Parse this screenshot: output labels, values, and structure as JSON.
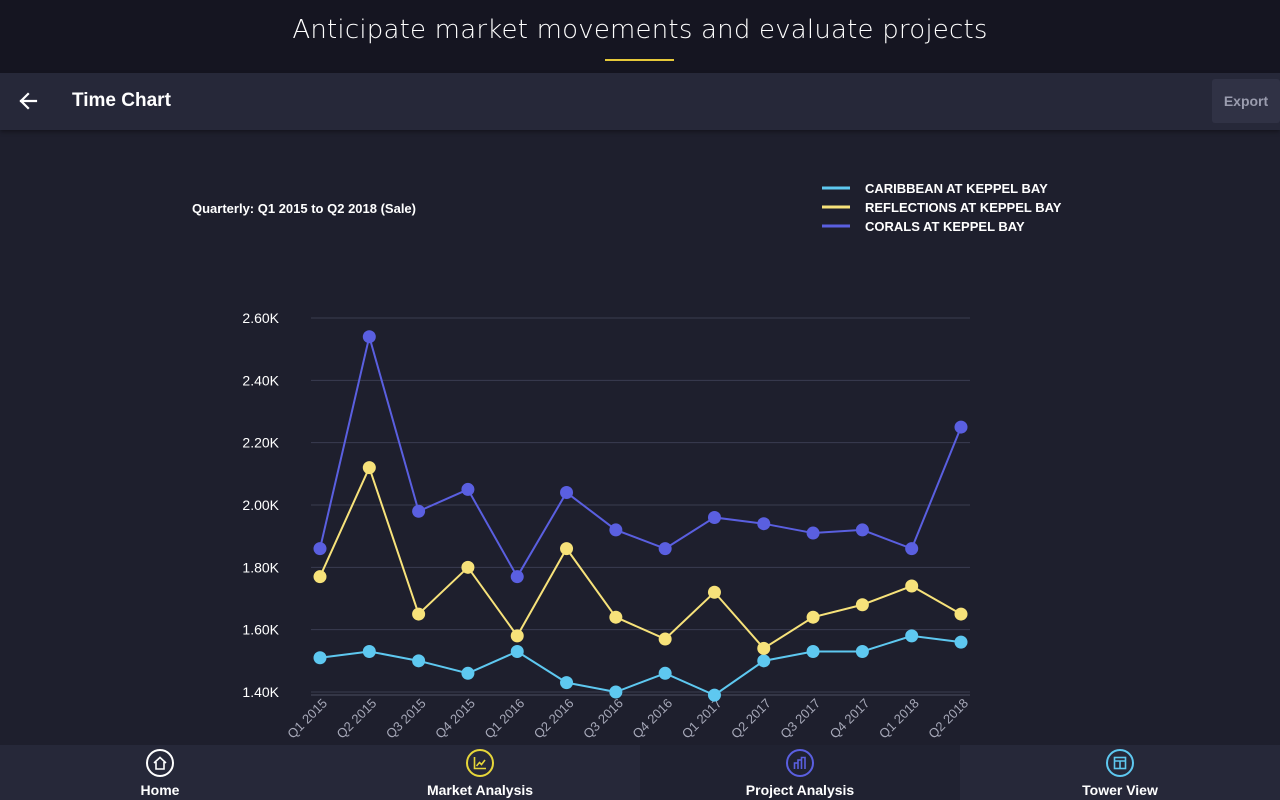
{
  "banner": {
    "text": "Anticipate market movements and evaluate projects"
  },
  "toolbar": {
    "title": "Time Chart",
    "export_label": "Export"
  },
  "nav": [
    {
      "label": "Home",
      "icon": "home-icon",
      "color": "#ffffff",
      "active": false
    },
    {
      "label": "Market Analysis",
      "icon": "trend-chart-icon",
      "color": "#e6d63a",
      "active": false
    },
    {
      "label": "Project Analysis",
      "icon": "bar-chart-icon",
      "color": "#5a5fe0",
      "active": true
    },
    {
      "label": "Tower View",
      "icon": "tower-grid-icon",
      "color": "#5ec8f0",
      "active": false
    }
  ],
  "chart_data": {
    "type": "line",
    "title": "Quarterly: Q1 2015 to Q2 2018 (Sale)",
    "categories": [
      "Q1 2015",
      "Q2 2015",
      "Q3 2015",
      "Q4 2015",
      "Q1 2016",
      "Q2 2016",
      "Q3 2016",
      "Q4 2016",
      "Q1 2017",
      "Q2 2017",
      "Q3 2017",
      "Q4 2017",
      "Q1 2018",
      "Q2 2018"
    ],
    "ylim": [
      1.4,
      2.6
    ],
    "yticks": [
      "1.40K",
      "1.60K",
      "1.80K",
      "2.00K",
      "2.20K",
      "2.40K",
      "2.60K"
    ],
    "grid": true,
    "legend_position": "top-right",
    "series": [
      {
        "name": "CARIBBEAN AT KEPPEL BAY",
        "color": "#5ec8f0",
        "values": [
          1.51,
          1.53,
          1.5,
          1.46,
          1.53,
          1.43,
          1.4,
          1.46,
          1.39,
          1.5,
          1.53,
          1.53,
          1.58,
          1.56
        ]
      },
      {
        "name": "REFLECTIONS AT KEPPEL BAY",
        "color": "#f7e27a",
        "values": [
          1.77,
          2.12,
          1.65,
          1.8,
          1.58,
          1.86,
          1.64,
          1.57,
          1.72,
          1.54,
          1.64,
          1.68,
          1.74,
          1.65
        ]
      },
      {
        "name": "CORALS AT KEPPEL BAY",
        "color": "#5a5fe0",
        "values": [
          1.86,
          2.54,
          1.98,
          2.05,
          1.77,
          2.04,
          1.92,
          1.86,
          1.96,
          1.94,
          1.91,
          1.92,
          1.86,
          2.25
        ]
      }
    ]
  }
}
